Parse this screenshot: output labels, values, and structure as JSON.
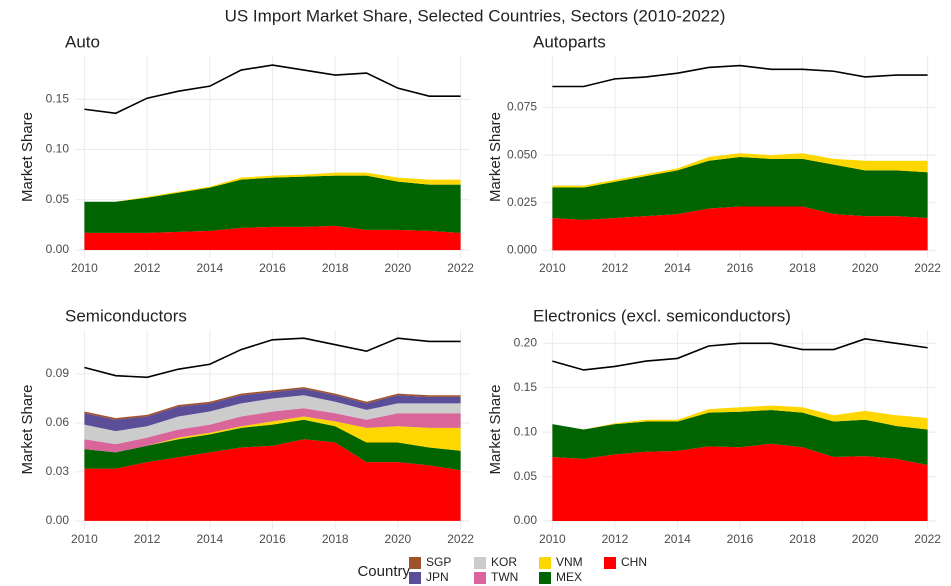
{
  "title": "US Import Market Share, Selected Countries, Sectors (2010-2022)",
  "legend_title": "Country",
  "chart_data": [
    {
      "type": "area",
      "title": "Auto",
      "y_label": "Market Share",
      "x": [
        2010,
        2011,
        2012,
        2013,
        2014,
        2015,
        2016,
        2017,
        2018,
        2019,
        2020,
        2021,
        2022
      ],
      "xlim": [
        2009.7,
        2022.3
      ],
      "xticks": [
        2010,
        2012,
        2014,
        2016,
        2018,
        2020,
        2022
      ],
      "ylim": [
        -0.008,
        0.193
      ],
      "yticks": [
        {
          "value": 0,
          "label": "0.00"
        },
        0.05,
        {
          "value": 0.1,
          "label": "0.10"
        },
        0.15
      ],
      "grid": true,
      "series": [
        {
          "name": "CHN",
          "color": "#ff0000",
          "values": [
            0.017,
            0.017,
            0.017,
            0.018,
            0.019,
            0.022,
            0.023,
            0.023,
            0.024,
            0.02,
            0.02,
            0.019,
            0.017
          ]
        },
        {
          "name": "MEX",
          "color": "#006400",
          "values": [
            0.031,
            0.031,
            0.035,
            0.039,
            0.043,
            0.048,
            0.049,
            0.05,
            0.05,
            0.054,
            0.048,
            0.046,
            0.048
          ]
        },
        {
          "name": "VNM",
          "color": "#ffd700",
          "values": [
            0,
            0,
            0.001,
            0.001,
            0.001,
            0.002,
            0.002,
            0.002,
            0.003,
            0.003,
            0.004,
            0.005,
            0.005
          ]
        },
        {
          "type": "line",
          "color": "#000000",
          "values": [
            0.14,
            0.136,
            0.151,
            0.158,
            0.163,
            0.179,
            0.184,
            0.179,
            0.174,
            0.176,
            0.161,
            0.153,
            0.153
          ]
        }
      ]
    },
    {
      "type": "area",
      "title": "Autoparts",
      "y_label": "Market Share",
      "x": [
        2010,
        2011,
        2012,
        2013,
        2014,
        2015,
        2016,
        2017,
        2018,
        2019,
        2020,
        2021,
        2022
      ],
      "xlim": [
        2009.7,
        2022.3
      ],
      "xticks": [
        2010,
        2012,
        2014,
        2016,
        2018,
        2020,
        2022
      ],
      "ylim": [
        -0.004,
        0.102
      ],
      "yticks": [
        {
          "value": 0,
          "label": "0.000"
        },
        0.025,
        {
          "value": 0.05,
          "label": "0.050"
        },
        0.075
      ],
      "grid": true,
      "series": [
        {
          "name": "CHN",
          "color": "#ff0000",
          "values": [
            0.017,
            0.016,
            0.017,
            0.018,
            0.019,
            0.022,
            0.023,
            0.023,
            0.023,
            0.019,
            0.018,
            0.018,
            0.017
          ]
        },
        {
          "name": "MEX",
          "color": "#006400",
          "values": [
            0.016,
            0.017,
            0.019,
            0.021,
            0.023,
            0.025,
            0.026,
            0.025,
            0.025,
            0.026,
            0.024,
            0.024,
            0.024
          ]
        },
        {
          "name": "VNM",
          "color": "#ffd700",
          "values": [
            0.001,
            0.001,
            0.001,
            0.001,
            0.001,
            0.002,
            0.002,
            0.002,
            0.003,
            0.003,
            0.005,
            0.005,
            0.006
          ]
        },
        {
          "type": "line",
          "color": "#000000",
          "values": [
            0.086,
            0.086,
            0.09,
            0.091,
            0.093,
            0.096,
            0.097,
            0.095,
            0.095,
            0.094,
            0.091,
            0.092,
            0.092
          ]
        }
      ]
    },
    {
      "type": "area",
      "title": "Semiconductors",
      "y_label": "Market Share",
      "x": [
        2010,
        2011,
        2012,
        2013,
        2014,
        2015,
        2016,
        2017,
        2018,
        2019,
        2020,
        2021,
        2022
      ],
      "xlim": [
        2009.7,
        2022.3
      ],
      "xticks": [
        2010,
        2012,
        2014,
        2016,
        2018,
        2020,
        2022
      ],
      "ylim": [
        -0.005,
        0.117
      ],
      "yticks": [
        {
          "value": 0,
          "label": "0.00"
        },
        0.03,
        0.06,
        0.09
      ],
      "grid": true,
      "series": [
        {
          "name": "CHN",
          "color": "#ff0000",
          "values": [
            0.032,
            0.032,
            0.036,
            0.039,
            0.042,
            0.045,
            0.046,
            0.05,
            0.048,
            0.036,
            0.036,
            0.034,
            0.031
          ]
        },
        {
          "name": "MEX",
          "color": "#006400",
          "values": [
            0.012,
            0.01,
            0.01,
            0.011,
            0.011,
            0.012,
            0.013,
            0.012,
            0.01,
            0.012,
            0.012,
            0.011,
            0.012
          ]
        },
        {
          "name": "VNM",
          "color": "#ffd700",
          "values": [
            0,
            0,
            0,
            0.001,
            0.001,
            0.001,
            0.002,
            0.002,
            0.003,
            0.009,
            0.01,
            0.012,
            0.014
          ]
        },
        {
          "name": "TWN",
          "color": "#d9659a",
          "values": [
            0.006,
            0.005,
            0.005,
            0.005,
            0.005,
            0.006,
            0.006,
            0.005,
            0.005,
            0.005,
            0.008,
            0.009,
            0.009
          ]
        },
        {
          "name": "KOR",
          "color": "#cccccc",
          "values": [
            0.009,
            0.008,
            0.007,
            0.008,
            0.008,
            0.008,
            0.008,
            0.008,
            0.007,
            0.006,
            0.006,
            0.006,
            0.006
          ]
        },
        {
          "name": "JPN",
          "color": "#5c4d99",
          "values": [
            0.007,
            0.007,
            0.006,
            0.006,
            0.005,
            0.005,
            0.004,
            0.004,
            0.004,
            0.004,
            0.005,
            0.004,
            0.004
          ]
        },
        {
          "name": "SGP",
          "color": "#a0522d",
          "values": [
            0.001,
            0.001,
            0.001,
            0.001,
            0.001,
            0.001,
            0.001,
            0.001,
            0.001,
            0.001,
            0.001,
            0.001,
            0.001
          ]
        },
        {
          "type": "line",
          "color": "#000000",
          "values": [
            0.094,
            0.089,
            0.088,
            0.093,
            0.096,
            0.105,
            0.111,
            0.112,
            0.108,
            0.104,
            0.112,
            0.11,
            0.11
          ]
        }
      ]
    },
    {
      "type": "area",
      "title": "Electronics (excl. semiconductors)",
      "y_label": "Market Share",
      "x": [
        2010,
        2011,
        2012,
        2013,
        2014,
        2015,
        2016,
        2017,
        2018,
        2019,
        2020,
        2021,
        2022
      ],
      "xlim": [
        2009.7,
        2022.3
      ],
      "xticks": [
        2010,
        2012,
        2014,
        2016,
        2018,
        2020,
        2022
      ],
      "ylim": [
        -0.009,
        0.215
      ],
      "yticks": [
        {
          "value": 0,
          "label": "0.00"
        },
        0.05,
        {
          "value": 0.1,
          "label": "0.10"
        },
        0.15,
        {
          "value": 0.2,
          "label": "0.20"
        }
      ],
      "grid": true,
      "series": [
        {
          "name": "CHN",
          "color": "#ff0000",
          "values": [
            0.072,
            0.07,
            0.075,
            0.078,
            0.079,
            0.084,
            0.083,
            0.087,
            0.083,
            0.072,
            0.073,
            0.07,
            0.063
          ]
        },
        {
          "name": "MEX",
          "color": "#006400",
          "values": [
            0.037,
            0.033,
            0.034,
            0.034,
            0.033,
            0.038,
            0.04,
            0.038,
            0.039,
            0.04,
            0.041,
            0.037,
            0.04
          ]
        },
        {
          "name": "VNM",
          "color": "#ffd700",
          "values": [
            0,
            0,
            0.001,
            0.002,
            0.002,
            0.004,
            0.005,
            0.005,
            0.006,
            0.007,
            0.01,
            0.012,
            0.013
          ]
        },
        {
          "type": "line",
          "color": "#000000",
          "values": [
            0.18,
            0.17,
            0.174,
            0.18,
            0.183,
            0.197,
            0.2,
            0.2,
            0.193,
            0.193,
            0.205,
            0.2,
            0.195
          ]
        }
      ]
    }
  ]
}
